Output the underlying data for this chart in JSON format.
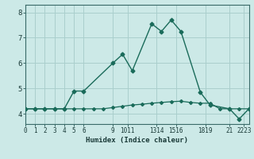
{
  "xlabel": "Humidex (Indice chaleur)",
  "bg_color": "#cce9e7",
  "grid_color": "#aacfcd",
  "line_color": "#1a6b5a",
  "series1_x": [
    0,
    1,
    2,
    3,
    4,
    5,
    6,
    9,
    10,
    11,
    13,
    14,
    15,
    16,
    18,
    19,
    21,
    22,
    23
  ],
  "series1_y": [
    4.2,
    4.2,
    4.2,
    4.2,
    4.2,
    4.9,
    4.9,
    6.0,
    6.35,
    5.7,
    7.55,
    7.25,
    7.7,
    7.25,
    4.85,
    4.35,
    4.2,
    3.8,
    4.2
  ],
  "series2_x": [
    0,
    1,
    2,
    3,
    4,
    5,
    6,
    7,
    8,
    9,
    10,
    11,
    12,
    13,
    14,
    15,
    16,
    17,
    18,
    19,
    20,
    21,
    22,
    23
  ],
  "series2_y": [
    4.2,
    4.2,
    4.2,
    4.2,
    4.2,
    4.2,
    4.2,
    4.2,
    4.2,
    4.25,
    4.3,
    4.35,
    4.38,
    4.42,
    4.45,
    4.48,
    4.5,
    4.45,
    4.42,
    4.42,
    4.2,
    4.2,
    4.2,
    4.2
  ],
  "xlim": [
    0,
    23
  ],
  "ylim": [
    3.6,
    8.3
  ],
  "yticks": [
    4,
    5,
    6,
    7,
    8
  ],
  "xtick_positions": [
    0,
    1,
    2,
    3,
    4,
    5,
    6,
    9,
    10.5,
    13.5,
    15.5,
    18.5,
    21,
    22.5
  ],
  "xtick_labels": [
    "0",
    "1",
    "2",
    "3",
    "4",
    "5",
    "6",
    "9",
    "1011",
    "1314",
    "1516",
    "1819",
    "21",
    "2223"
  ]
}
